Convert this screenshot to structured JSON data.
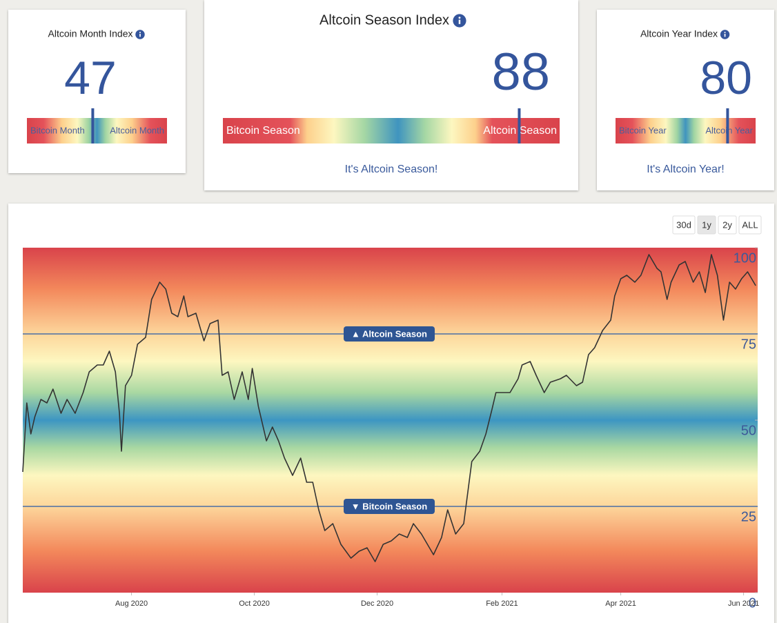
{
  "cards": [
    {
      "title": "Altcoin Month Index",
      "value": 47,
      "lim": [
        0,
        100
      ],
      "bar_labels": [
        "Bitcoin Month",
        "Altcoin Month"
      ]
    },
    {
      "title": "Altcoin Season Index",
      "value": 88,
      "lim": [
        0,
        100
      ],
      "bar_labels": [
        "Bitcoin Season",
        "Altcoin Season"
      ],
      "message": "It's Altcoin Season!"
    },
    {
      "title": "Altcoin Year Index",
      "value": 80,
      "lim": [
        0,
        100
      ],
      "bar_labels": [
        "Bitcoin Year",
        "Altcoin Year"
      ],
      "message": "It's Altcoin Year!"
    }
  ],
  "buttons": [
    "30d",
    "1y",
    "2y",
    "ALL"
  ],
  "active_button": "1y",
  "chart_data": {
    "type": "line",
    "color": "#333333",
    "x": [
      0,
      2,
      4,
      6,
      9,
      12,
      15,
      19,
      22,
      26,
      30,
      33,
      37,
      40,
      43,
      46,
      48,
      49,
      51,
      54,
      57,
      61,
      64,
      68,
      71,
      74,
      77,
      80,
      82,
      86,
      90,
      93,
      97,
      99,
      102,
      105,
      109,
      112,
      114,
      117,
      121,
      124,
      127,
      130,
      134,
      138,
      141,
      144,
      147,
      150,
      154,
      158,
      163,
      167,
      171,
      175,
      179,
      183,
      187,
      191,
      194,
      198,
      204,
      208,
      211,
      215,
      219,
      223,
      227,
      230,
      233,
      235,
      239,
      242,
      246,
      248,
      252,
      255,
      259,
      262,
      267,
      270,
      275,
      278,
      281,
      284,
      288,
      292,
      294,
      297,
      300,
      304,
      307,
      311,
      315,
      317,
      320,
      322,
      326,
      329,
      333,
      336,
      339,
      342,
      345,
      348,
      351,
      354,
      357,
      360,
      364
    ],
    "values": [
      35,
      55,
      46,
      51,
      56,
      55,
      59,
      52,
      56,
      52,
      58,
      64,
      66,
      66,
      70,
      64,
      52,
      41,
      60,
      63,
      72,
      74,
      85,
      90,
      88,
      81,
      80,
      86,
      80,
      81,
      73,
      78,
      79,
      63,
      64,
      56,
      64,
      56,
      65,
      54,
      44,
      48,
      44,
      39,
      34,
      39,
      32,
      32,
      24,
      18,
      20,
      14,
      10,
      12,
      13,
      9,
      14,
      15,
      17,
      16,
      20,
      17,
      11,
      16,
      24,
      17,
      20,
      38,
      41,
      46,
      53,
      58,
      58,
      58,
      62,
      66,
      67,
      63,
      58,
      61,
      62,
      63,
      60,
      61,
      69,
      71,
      76,
      79,
      86,
      91,
      92,
      90,
      92,
      98,
      94,
      93,
      85,
      90,
      95,
      96,
      90,
      93,
      87,
      98,
      92,
      79,
      90,
      88,
      91,
      93,
      89
    ],
    "xlim": [
      0,
      365
    ],
    "xticks": [
      {
        "value": 54,
        "label": "Aug 2020"
      },
      {
        "value": 115,
        "label": "Oct 2020"
      },
      {
        "value": 176,
        "label": "Dec 2020"
      },
      {
        "value": 238,
        "label": "Feb 2021"
      },
      {
        "value": 297,
        "label": "Apr 2021"
      },
      {
        "value": 358,
        "label": "Jun 2021"
      }
    ],
    "ylim": [
      0,
      100
    ],
    "yticks": [
      0,
      25,
      50,
      75,
      100
    ],
    "thresholds": [
      {
        "value": 75,
        "label": "▲ Altcoin Season"
      },
      {
        "value": 25,
        "label": "▼ Bitcoin Season"
      }
    ]
  }
}
